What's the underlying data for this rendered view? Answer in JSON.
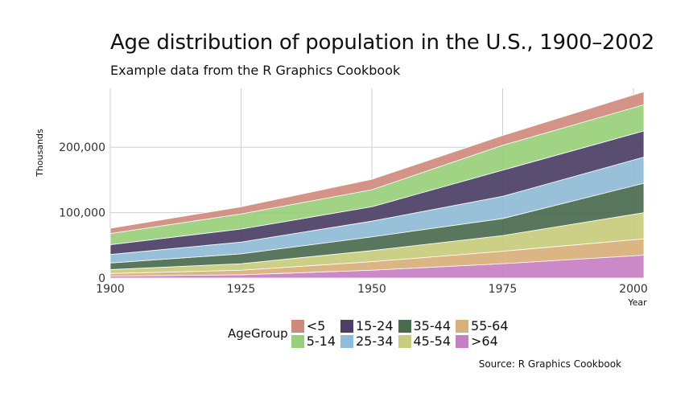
{
  "title": "Age distribution of population in the U.S., 1900–2002",
  "subtitle": "Example data from the R Graphics Cookbook",
  "caption": "Source: R Graphics Cookbook",
  "chart_data": {
    "type": "area",
    "stacked": true,
    "xlabel": "Year",
    "ylabel": "Thousands",
    "xlim": [
      1900,
      2002
    ],
    "ylim": [
      0,
      290000
    ],
    "x_ticks": [
      1900,
      1925,
      1950,
      1975,
      2000
    ],
    "x_tick_labels": [
      "1900",
      "1925",
      "1950",
      "1975",
      "2000"
    ],
    "y_ticks": [
      0,
      100000,
      200000
    ],
    "y_tick_labels": [
      "0",
      "100,000",
      "200,000"
    ],
    "grid": true,
    "legend_title": "AgeGroup",
    "legend_position": "bottom",
    "x": [
      1900,
      1925,
      1950,
      1975,
      2002
    ],
    "series": [
      {
        "name": ">64",
        "color": "#c77fc2",
        "values": [
          3000,
          5000,
          12000,
          22000,
          35000
        ]
      },
      {
        "name": "55-64",
        "color": "#d8b07a",
        "values": [
          4000,
          7000,
          13000,
          19000,
          25000
        ]
      },
      {
        "name": "45-54",
        "color": "#c8cc7c",
        "values": [
          6000,
          10000,
          17000,
          24000,
          40000
        ]
      },
      {
        "name": "35-44",
        "color": "#4a6b4e",
        "values": [
          10000,
          15000,
          21000,
          26000,
          45000
        ]
      },
      {
        "name": "25-34",
        "color": "#8fbcd6",
        "values": [
          13000,
          18000,
          24000,
          34000,
          40000
        ]
      },
      {
        "name": "15-24",
        "color": "#4b3f66",
        "values": [
          15000,
          20000,
          22000,
          40000,
          40000
        ]
      },
      {
        "name": "5-14",
        "color": "#98cf7a",
        "values": [
          17000,
          23000,
          26000,
          38000,
          40000
        ]
      },
      {
        "name": "<5",
        "color": "#cf8a7c",
        "values": [
          8000,
          11000,
          16000,
          15000,
          20000
        ]
      }
    ]
  },
  "legend": [
    {
      "label": "<5",
      "color": "#cf8a7c"
    },
    {
      "label": "15-24",
      "color": "#4b3f66"
    },
    {
      "label": "35-44",
      "color": "#4a6b4e"
    },
    {
      "label": "55-64",
      "color": "#d8b07a"
    },
    {
      "label": "5-14",
      "color": "#98cf7a"
    },
    {
      "label": "25-34",
      "color": "#8fbcd6"
    },
    {
      "label": "45-54",
      "color": "#c8cc7c"
    },
    {
      "label": ">64",
      "color": "#c77fc2"
    }
  ]
}
